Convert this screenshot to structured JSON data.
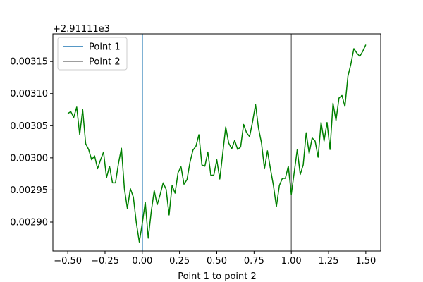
{
  "chart_data": {
    "type": "line",
    "xlabel": "Point 1 to point 2",
    "offset_label": "+2.91111e3",
    "xlim": [
      -0.6,
      1.6
    ],
    "ylim": [
      0.002855,
      0.003193
    ],
    "x_ticks": [
      -0.5,
      -0.25,
      0.0,
      0.25,
      0.5,
      0.75,
      1.0,
      1.25,
      1.5
    ],
    "x_tick_labels": [
      "−0.50",
      "−0.25",
      "0.00",
      "0.25",
      "0.50",
      "0.75",
      "1.00",
      "1.25",
      "1.50"
    ],
    "y_ticks": [
      0.0029,
      0.00295,
      0.003,
      0.00305,
      0.0031,
      0.00315
    ],
    "y_tick_labels": [
      "0.00290",
      "0.00295",
      "0.00300",
      "0.00305",
      "0.00310",
      "0.00315"
    ],
    "grid": false,
    "legend_position": "upper-left",
    "vlines": [
      {
        "name": "Point 1",
        "x": 0.0,
        "color": "#1f77b4"
      },
      {
        "name": "Point 2",
        "x": 1.0,
        "color": "#7f7f7f"
      }
    ],
    "series": [
      {
        "color": "#008000",
        "x": [
          -0.5,
          -0.48,
          -0.46,
          -0.44,
          -0.42,
          -0.4,
          -0.38,
          -0.36,
          -0.34,
          -0.32,
          -0.3,
          -0.28,
          -0.26,
          -0.24,
          -0.22,
          -0.2,
          -0.18,
          -0.16,
          -0.14,
          -0.12,
          -0.1,
          -0.08,
          -0.06,
          -0.04,
          -0.02,
          0.0,
          0.02,
          0.04,
          0.06,
          0.08,
          0.1,
          0.12,
          0.14,
          0.16,
          0.18,
          0.2,
          0.22,
          0.24,
          0.26,
          0.28,
          0.3,
          0.32,
          0.34,
          0.36,
          0.38,
          0.4,
          0.42,
          0.44,
          0.46,
          0.48,
          0.5,
          0.52,
          0.54,
          0.56,
          0.58,
          0.6,
          0.62,
          0.64,
          0.66,
          0.68,
          0.7,
          0.72,
          0.74,
          0.76,
          0.78,
          0.8,
          0.82,
          0.84,
          0.86,
          0.88,
          0.9,
          0.92,
          0.94,
          0.96,
          0.98,
          1.0,
          1.02,
          1.04,
          1.06,
          1.08,
          1.1,
          1.12,
          1.14,
          1.16,
          1.18,
          1.2,
          1.22,
          1.24,
          1.26,
          1.28,
          1.3,
          1.32,
          1.34,
          1.36,
          1.38,
          1.4,
          1.42,
          1.44,
          1.46,
          1.48,
          1.5
        ],
        "y": [
          0.003069,
          0.003072,
          0.003063,
          0.003079,
          0.003036,
          0.003075,
          0.003022,
          0.003013,
          0.002997,
          0.003003,
          0.002983,
          0.002997,
          0.003009,
          0.002969,
          0.002987,
          0.002961,
          0.002961,
          0.002991,
          0.003015,
          0.002952,
          0.002921,
          0.002952,
          0.002939,
          0.002899,
          0.002869,
          0.002898,
          0.002931,
          0.002875,
          0.002916,
          0.002949,
          0.002927,
          0.002943,
          0.002961,
          0.002951,
          0.002911,
          0.002957,
          0.002945,
          0.002977,
          0.002986,
          0.002959,
          0.002966,
          0.002993,
          0.003012,
          0.003018,
          0.003036,
          0.002989,
          0.002987,
          0.003009,
          0.002973,
          0.002973,
          0.002997,
          0.002967,
          0.003007,
          0.003048,
          0.003023,
          0.003014,
          0.003027,
          0.003013,
          0.003017,
          0.003052,
          0.003039,
          0.003033,
          0.003056,
          0.003083,
          0.003046,
          0.003023,
          0.002983,
          0.003011,
          0.002983,
          0.002957,
          0.002924,
          0.002957,
          0.002968,
          0.002968,
          0.002987,
          0.002943,
          0.002978,
          0.003013,
          0.002974,
          0.002989,
          0.003039,
          0.003007,
          0.003031,
          0.003026,
          0.003001,
          0.003055,
          0.003026,
          0.003055,
          0.003013,
          0.003085,
          0.003058,
          0.003093,
          0.003097,
          0.00308,
          0.003127,
          0.003146,
          0.00317,
          0.003163,
          0.003158,
          0.003166,
          0.003176
        ]
      }
    ]
  }
}
